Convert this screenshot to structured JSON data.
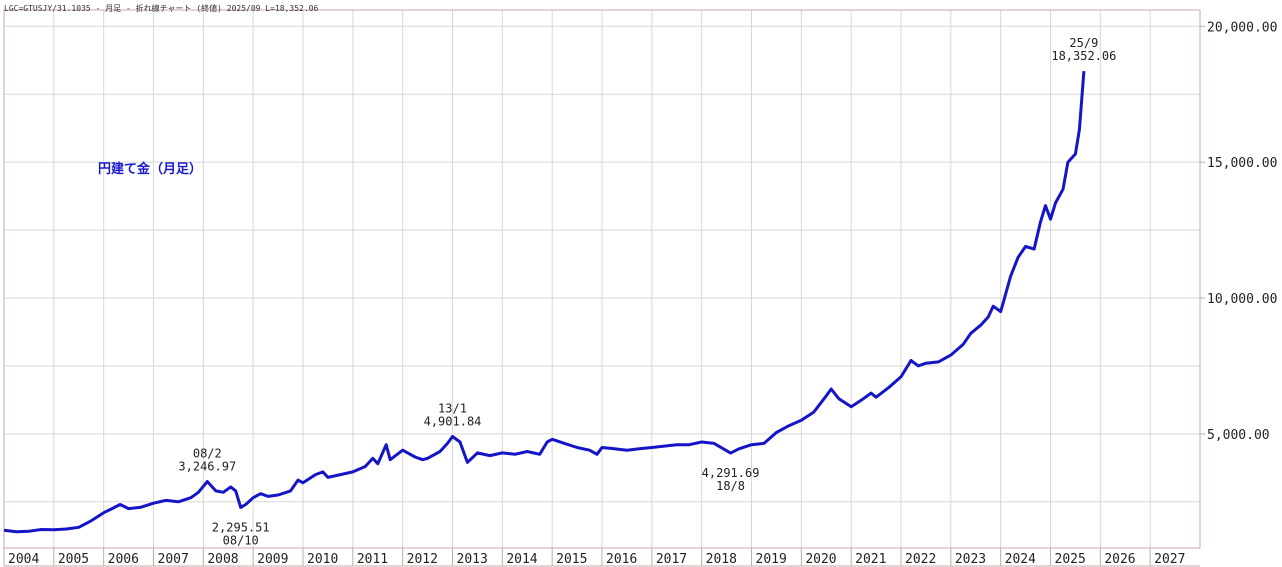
{
  "header": {
    "info": "LGC=GTUSJY/31.1035 - 月足 - 折れ線チャート (終値) 2025/09 L=18,352.06"
  },
  "title": "円建て金（月足）",
  "colors": {
    "line": "#1515c8",
    "grid": "#d8d8d8",
    "frame": "#c8a8a8",
    "text": "#222222"
  },
  "chart_data": {
    "type": "line",
    "title": "円建て金（月足）",
    "xlabel": "",
    "ylabel": "",
    "x_range": [
      2004.0,
      2028.0
    ],
    "ylim": [
      800,
      20600
    ],
    "grid": true,
    "x_ticks": [
      "2004",
      "2005",
      "2006",
      "2007",
      "2008",
      "2009",
      "2010",
      "2011",
      "2012",
      "2013",
      "2014",
      "2015",
      "2016",
      "2017",
      "2018",
      "2019",
      "2020",
      "2021",
      "2022",
      "2023",
      "2024",
      "2025",
      "2026",
      "2027"
    ],
    "y_ticks": [
      {
        "value": 5000,
        "label": "5,000.00"
      },
      {
        "value": 10000,
        "label": "10,000.00"
      },
      {
        "value": 15000,
        "label": "15,000.00"
      },
      {
        "value": 20000,
        "label": "20,000.00"
      }
    ],
    "annotations": [
      {
        "label": "08/2",
        "value_label": "3,246.97",
        "x": 2008.08,
        "y": 3246.97,
        "position": "above"
      },
      {
        "label": "08/10",
        "value_label": "2,295.51",
        "x": 2008.75,
        "y": 2295.51,
        "position": "below"
      },
      {
        "label": "13/1",
        "value_label": "4,901.84",
        "x": 2013.0,
        "y": 4901.84,
        "position": "above"
      },
      {
        "label": "18/8",
        "value_label": "4,291.69",
        "x": 2018.58,
        "y": 4291.69,
        "position": "below"
      },
      {
        "label": "25/9",
        "value_label": "18,352.06",
        "x": 2025.67,
        "y": 18352.06,
        "position": "above"
      }
    ],
    "series": [
      {
        "points": [
          [
            2004.0,
            1450
          ],
          [
            2004.25,
            1400
          ],
          [
            2004.5,
            1420
          ],
          [
            2004.75,
            1480
          ],
          [
            2005.0,
            1470
          ],
          [
            2005.25,
            1500
          ],
          [
            2005.5,
            1560
          ],
          [
            2005.75,
            1800
          ],
          [
            2006.0,
            2100
          ],
          [
            2006.17,
            2250
          ],
          [
            2006.33,
            2400
          ],
          [
            2006.5,
            2250
          ],
          [
            2006.75,
            2300
          ],
          [
            2007.0,
            2450
          ],
          [
            2007.25,
            2550
          ],
          [
            2007.5,
            2500
          ],
          [
            2007.75,
            2650
          ],
          [
            2007.9,
            2850
          ],
          [
            2008.08,
            3246.97
          ],
          [
            2008.25,
            2900
          ],
          [
            2008.4,
            2850
          ],
          [
            2008.55,
            3050
          ],
          [
            2008.65,
            2900
          ],
          [
            2008.75,
            2295.51
          ],
          [
            2008.85,
            2400
          ],
          [
            2009.0,
            2650
          ],
          [
            2009.15,
            2800
          ],
          [
            2009.3,
            2700
          ],
          [
            2009.5,
            2750
          ],
          [
            2009.75,
            2900
          ],
          [
            2009.9,
            3300
          ],
          [
            2010.0,
            3200
          ],
          [
            2010.25,
            3500
          ],
          [
            2010.4,
            3600
          ],
          [
            2010.5,
            3400
          ],
          [
            2010.75,
            3500
          ],
          [
            2011.0,
            3600
          ],
          [
            2011.25,
            3800
          ],
          [
            2011.4,
            4100
          ],
          [
            2011.5,
            3900
          ],
          [
            2011.67,
            4600
          ],
          [
            2011.75,
            4050
          ],
          [
            2012.0,
            4400
          ],
          [
            2012.25,
            4150
          ],
          [
            2012.4,
            4050
          ],
          [
            2012.5,
            4100
          ],
          [
            2012.75,
            4350
          ],
          [
            2012.9,
            4650
          ],
          [
            2013.0,
            4901.84
          ],
          [
            2013.15,
            4700
          ],
          [
            2013.3,
            3950
          ],
          [
            2013.5,
            4300
          ],
          [
            2013.75,
            4200
          ],
          [
            2014.0,
            4300
          ],
          [
            2014.25,
            4250
          ],
          [
            2014.5,
            4350
          ],
          [
            2014.75,
            4250
          ],
          [
            2014.9,
            4700
          ],
          [
            2015.0,
            4800
          ],
          [
            2015.25,
            4650
          ],
          [
            2015.5,
            4500
          ],
          [
            2015.75,
            4400
          ],
          [
            2015.9,
            4250
          ],
          [
            2016.0,
            4500
          ],
          [
            2016.25,
            4450
          ],
          [
            2016.5,
            4400
          ],
          [
            2016.75,
            4450
          ],
          [
            2017.0,
            4500
          ],
          [
            2017.25,
            4550
          ],
          [
            2017.5,
            4600
          ],
          [
            2017.75,
            4600
          ],
          [
            2018.0,
            4700
          ],
          [
            2018.25,
            4650
          ],
          [
            2018.58,
            4291.69
          ],
          [
            2018.75,
            4450
          ],
          [
            2019.0,
            4600
          ],
          [
            2019.25,
            4650
          ],
          [
            2019.5,
            5050
          ],
          [
            2019.75,
            5300
          ],
          [
            2020.0,
            5500
          ],
          [
            2020.25,
            5800
          ],
          [
            2020.5,
            6400
          ],
          [
            2020.6,
            6650
          ],
          [
            2020.75,
            6300
          ],
          [
            2021.0,
            6000
          ],
          [
            2021.25,
            6300
          ],
          [
            2021.4,
            6500
          ],
          [
            2021.5,
            6350
          ],
          [
            2021.75,
            6700
          ],
          [
            2022.0,
            7100
          ],
          [
            2022.2,
            7700
          ],
          [
            2022.35,
            7500
          ],
          [
            2022.5,
            7600
          ],
          [
            2022.75,
            7650
          ],
          [
            2023.0,
            7900
          ],
          [
            2023.25,
            8300
          ],
          [
            2023.4,
            8700
          ],
          [
            2023.6,
            9000
          ],
          [
            2023.75,
            9300
          ],
          [
            2023.85,
            9700
          ],
          [
            2024.0,
            9500
          ],
          [
            2024.2,
            10800
          ],
          [
            2024.35,
            11500
          ],
          [
            2024.5,
            11900
          ],
          [
            2024.67,
            11800
          ],
          [
            2024.8,
            12800
          ],
          [
            2024.9,
            13400
          ],
          [
            2025.0,
            12900
          ],
          [
            2025.1,
            13500
          ],
          [
            2025.25,
            14000
          ],
          [
            2025.35,
            15000
          ],
          [
            2025.5,
            15300
          ],
          [
            2025.58,
            16200
          ],
          [
            2025.67,
            18352.06
          ]
        ]
      }
    ]
  }
}
